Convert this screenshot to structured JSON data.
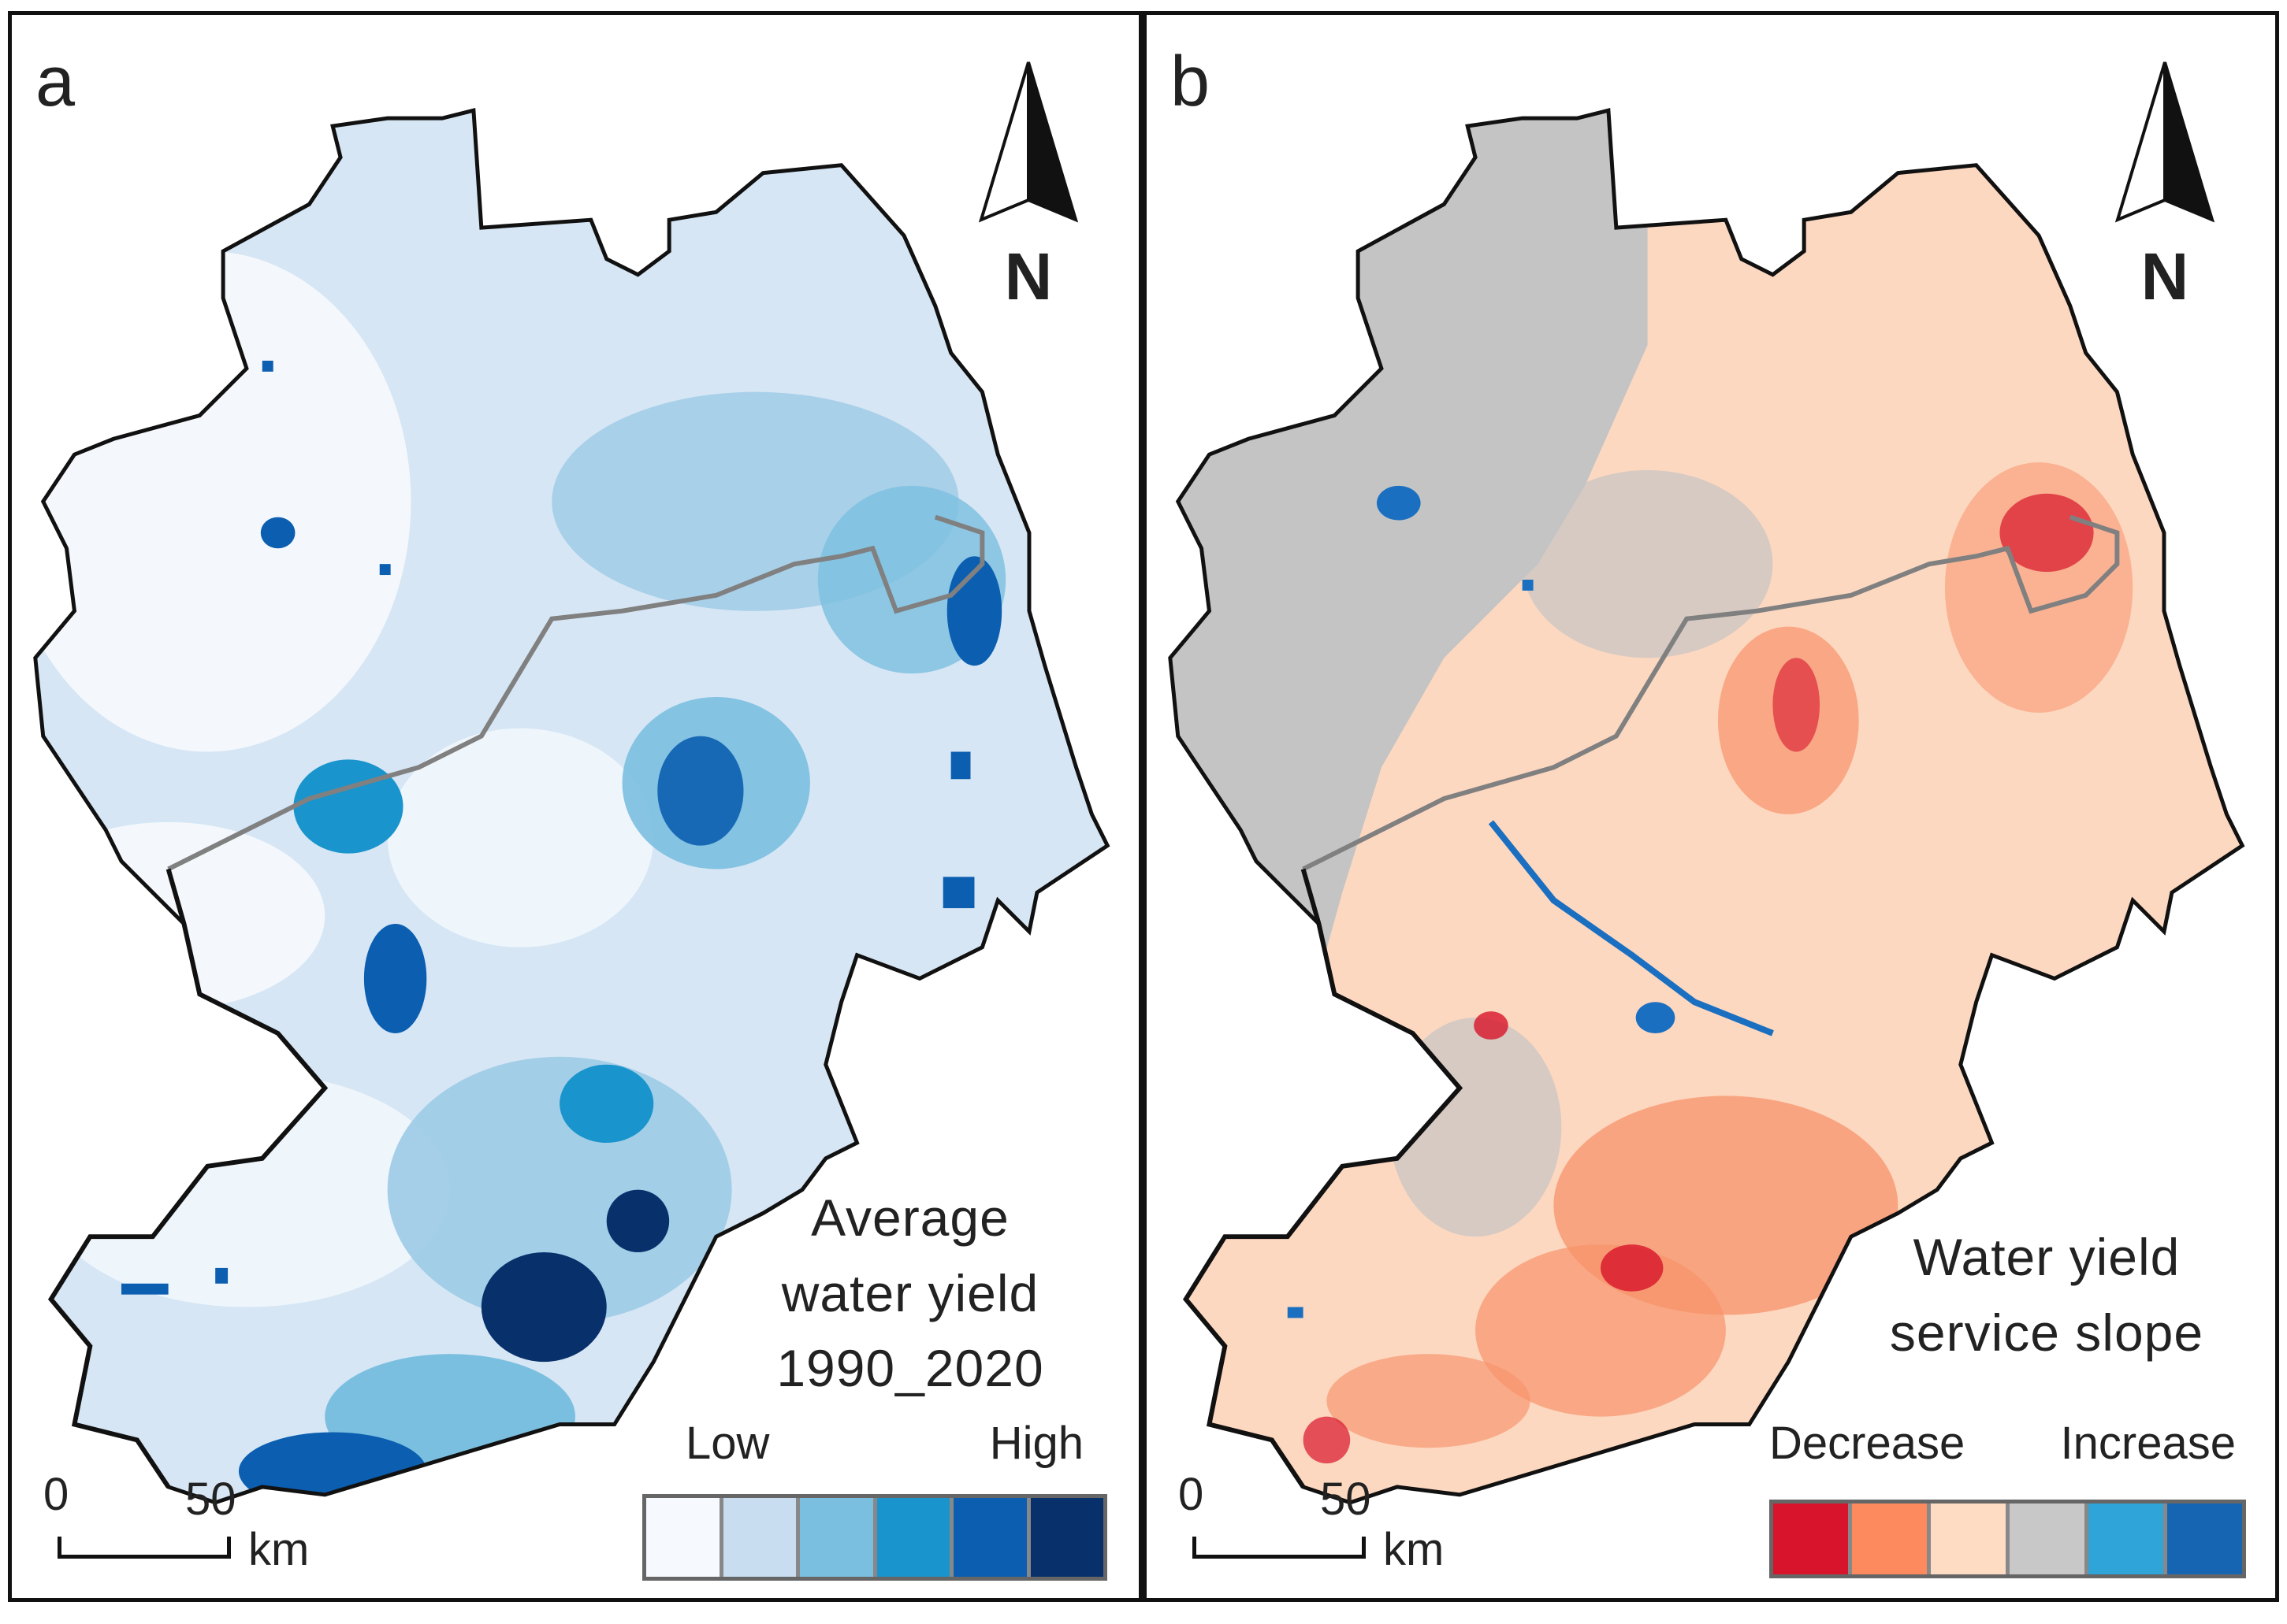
{
  "panels": [
    {
      "letter": "a",
      "north_label": "N",
      "legend_title_lines": [
        "Average",
        "water yield",
        "1990_2020"
      ],
      "legend_low": "Low",
      "legend_high": "High",
      "legend_colors": [
        "#f6fafe",
        "#c8ddef",
        "#7bbfe0",
        "#1a94cc",
        "#0b5eb0",
        "#08306b"
      ],
      "scale_start": "0",
      "scale_end": "50",
      "scale_unit": "km"
    },
    {
      "letter": "b",
      "north_label": "N",
      "legend_title_lines": [
        "Water yield",
        "service slope"
      ],
      "legend_low": "Decrease",
      "legend_high": "Increase",
      "legend_colors": [
        "#d7142b",
        "#fc8a5e",
        "#fddcc3",
        "#c8c8c8",
        "#2ea4d8",
        "#1665b2"
      ],
      "scale_start": "0",
      "scale_end": "50",
      "scale_unit": "km"
    }
  ],
  "map_colors": {
    "a_base": "#d6e6f4",
    "a_light": "#f4f8fc",
    "a_mid": "#9ccbe6",
    "a_dark": "#0b5eb0",
    "a_darkest": "#08306b",
    "b_grey": "#c4c4c4",
    "b_peach": "#fdd8c0",
    "b_orange": "#f7936b",
    "b_red": "#d7142b",
    "b_blue": "#1a6fc0",
    "inner_boundary": "#808080",
    "outer_boundary": "#111111"
  }
}
